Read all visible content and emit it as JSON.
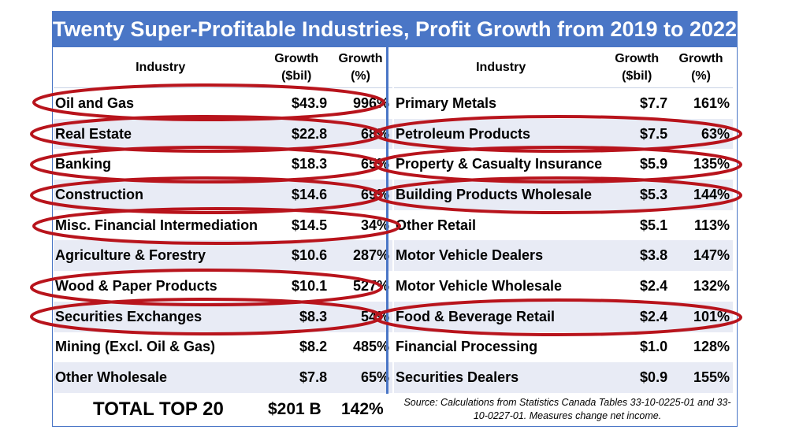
{
  "title": "Twenty Super-Profitable Industries, Profit Growth from 2019 to 2022",
  "headers": {
    "industry": "Industry",
    "growth_bil": "Growth ($bil)",
    "growth_pct": "Growth (%)"
  },
  "left_rows": [
    {
      "industry": "Oil and Gas",
      "bil": "$43.9",
      "pct": "996%"
    },
    {
      "industry": "Real Estate",
      "bil": "$22.8",
      "pct": "68%"
    },
    {
      "industry": "Banking",
      "bil": "$18.3",
      "pct": "65%"
    },
    {
      "industry": "Construction",
      "bil": "$14.6",
      "pct": "69%"
    },
    {
      "industry": "Misc. Financial Intermediation",
      "bil": "$14.5",
      "pct": "34%"
    },
    {
      "industry": "Agriculture & Forestry",
      "bil": "$10.6",
      "pct": "287%"
    },
    {
      "industry": "Wood & Paper Products",
      "bil": "$10.1",
      "pct": "527%"
    },
    {
      "industry": "Securities Exchanges",
      "bil": "$8.3",
      "pct": "54%"
    },
    {
      "industry": "Mining (Excl. Oil & Gas)",
      "bil": "$8.2",
      "pct": "485%"
    },
    {
      "industry": "Other Wholesale",
      "bil": "$7.8",
      "pct": "65%"
    }
  ],
  "right_rows": [
    {
      "industry": "Primary Metals",
      "bil": "$7.7",
      "pct": "161%"
    },
    {
      "industry": "Petroleum Products",
      "bil": "$7.5",
      "pct": "63%"
    },
    {
      "industry": "Property & Casualty Insurance",
      "bil": "$5.9",
      "pct": "135%"
    },
    {
      "industry": "Building Products Wholesale",
      "bil": "$5.3",
      "pct": "144%"
    },
    {
      "industry": "Other Retail",
      "bil": "$5.1",
      "pct": "113%"
    },
    {
      "industry": "Motor Vehicle Dealers",
      "bil": "$3.8",
      "pct": "147%"
    },
    {
      "industry": "Motor Vehicle Wholesale",
      "bil": "$2.4",
      "pct": "132%"
    },
    {
      "industry": "Food & Beverage Retail",
      "bil": "$2.4",
      "pct": "101%"
    },
    {
      "industry": "Financial Processing",
      "bil": "$1.0",
      "pct": "128%"
    },
    {
      "industry": "Securities Dealers",
      "bil": "$0.9",
      "pct": "155%"
    }
  ],
  "total": {
    "label": "TOTAL TOP 20",
    "bil": "$201 B",
    "pct": "142%"
  },
  "source": "Source: Calculations from Statistics Canada Tables 33-10-0225-01 and 33-10-0227-01. Measures change net income.",
  "colors": {
    "header_blue": "#4a76c6",
    "alt_row": "#e8ebf5",
    "circle_red": "#b8141c"
  }
}
